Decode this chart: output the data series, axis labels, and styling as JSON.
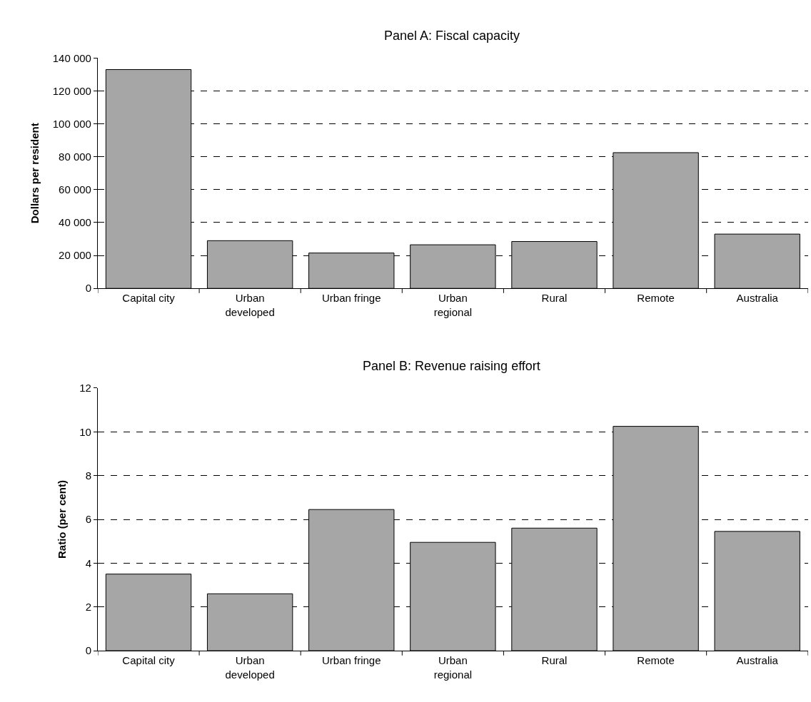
{
  "chart_data": [
    {
      "type": "bar",
      "title": "Panel A: Fiscal capacity",
      "ylabel": "Dollars per resident",
      "categories": [
        "Capital city",
        "Urban\ndeveloped",
        "Urban fringe",
        "Urban\nregional",
        "Rural",
        "Remote",
        "Australia"
      ],
      "values": [
        133000,
        29000,
        21500,
        26500,
        28500,
        82500,
        33000
      ],
      "color": "#a6a6a6",
      "ylim": [
        0,
        140000
      ],
      "yticks": [
        {
          "value": 0,
          "label": "0"
        },
        {
          "value": 20000,
          "label": "20 000"
        },
        {
          "value": 40000,
          "label": "40 000"
        },
        {
          "value": 60000,
          "label": "60 000"
        },
        {
          "value": 80000,
          "label": "80 000"
        },
        {
          "value": 100000,
          "label": "100 000"
        },
        {
          "value": 120000,
          "label": "120 000"
        },
        {
          "value": 140000,
          "label": "140 000"
        }
      ],
      "grid": "y"
    },
    {
      "type": "bar",
      "title": "Panel B: Revenue raising effort",
      "ylabel": "Ratio (per cent)",
      "categories": [
        "Capital city",
        "Urban\ndeveloped",
        "Urban fringe",
        "Urban\nregional",
        "Rural",
        "Remote",
        "Australia"
      ],
      "values": [
        3.5,
        2.6,
        6.45,
        4.95,
        5.6,
        10.25,
        5.45
      ],
      "color": "#a6a6a6",
      "ylim": [
        0,
        12
      ],
      "yticks": [
        0,
        2,
        4,
        6,
        8,
        10,
        12
      ],
      "grid": "y"
    }
  ]
}
